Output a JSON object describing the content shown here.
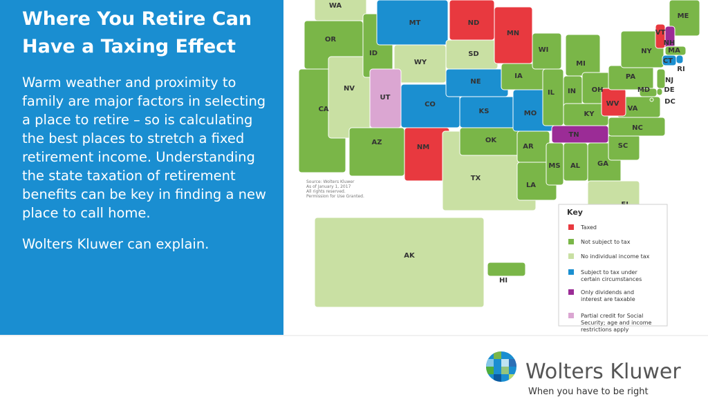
{
  "header": {
    "title": "Where You Retire Can Have a Taxing Effect",
    "paragraphs": [
      "Warm weather and proximity to family are major factors in selecting a place to retire – so is calculating the best places to stretch a fixed retirement income. Understanding the state taxation of retirement benefits can be key in finding a new place to call home.",
      "Wolters Kluwer can explain."
    ]
  },
  "map": {
    "source": [
      "Source: Wolters Kluwer",
      "As of January 1, 2017",
      "All rights reserved.",
      "Permission for Use Granted."
    ],
    "key": {
      "title": "Key",
      "items": [
        {
          "label": [
            "Taxed"
          ],
          "color": "#e8393f"
        },
        {
          "label": [
            "Not subject to tax"
          ],
          "color": "#7ab648"
        },
        {
          "label": [
            "No individual income tax"
          ],
          "color": "#c9e0a3"
        },
        {
          "label": [
            "Subject to tax under",
            "certain circumstances"
          ],
          "color": "#1b8fd0"
        },
        {
          "label": [
            "Only dividends and",
            "interest are taxable"
          ],
          "color": "#9b2c96"
        },
        {
          "label": [
            "Partial credit for Social",
            "Security; age and income",
            "restrictions apply"
          ],
          "color": "#dba6d2"
        }
      ]
    },
    "states": [
      {
        "abbr": "WA",
        "key": 2
      },
      {
        "abbr": "OR",
        "key": 1
      },
      {
        "abbr": "CA",
        "key": 1
      },
      {
        "abbr": "NV",
        "key": 2
      },
      {
        "abbr": "ID",
        "key": 1
      },
      {
        "abbr": "MT",
        "key": 3
      },
      {
        "abbr": "WY",
        "key": 2
      },
      {
        "abbr": "UT",
        "key": 5
      },
      {
        "abbr": "CO",
        "key": 3
      },
      {
        "abbr": "AZ",
        "key": 1
      },
      {
        "abbr": "NM",
        "key": 0
      },
      {
        "abbr": "TX",
        "key": 2
      },
      {
        "abbr": "ND",
        "key": 0
      },
      {
        "abbr": "SD",
        "key": 2
      },
      {
        "abbr": "NE",
        "key": 3
      },
      {
        "abbr": "KS",
        "key": 3
      },
      {
        "abbr": "OK",
        "key": 1
      },
      {
        "abbr": "MN",
        "key": 0
      },
      {
        "abbr": "IA",
        "key": 1
      },
      {
        "abbr": "MO",
        "key": 3
      },
      {
        "abbr": "AR",
        "key": 1
      },
      {
        "abbr": "LA",
        "key": 1
      },
      {
        "abbr": "WI",
        "key": 1
      },
      {
        "abbr": "IL",
        "key": 1
      },
      {
        "abbr": "MI",
        "key": 1
      },
      {
        "abbr": "IN",
        "key": 1
      },
      {
        "abbr": "OH",
        "key": 1
      },
      {
        "abbr": "KY",
        "key": 1
      },
      {
        "abbr": "TN",
        "key": 4
      },
      {
        "abbr": "MS",
        "key": 1
      },
      {
        "abbr": "AL",
        "key": 1
      },
      {
        "abbr": "GA",
        "key": 1
      },
      {
        "abbr": "FL",
        "key": 2
      },
      {
        "abbr": "SC",
        "key": 1
      },
      {
        "abbr": "NC",
        "key": 1
      },
      {
        "abbr": "VA",
        "key": 1
      },
      {
        "abbr": "WV",
        "key": 0
      },
      {
        "abbr": "PA",
        "key": 1
      },
      {
        "abbr": "NY",
        "key": 1
      },
      {
        "abbr": "ME",
        "key": 1
      },
      {
        "abbr": "VT",
        "key": 0
      },
      {
        "abbr": "NH",
        "key": 4
      },
      {
        "abbr": "MA",
        "key": 1
      },
      {
        "abbr": "CT",
        "key": 3
      },
      {
        "abbr": "RI",
        "key": 3
      },
      {
        "abbr": "NJ",
        "key": 1
      },
      {
        "abbr": "DE",
        "key": 1
      },
      {
        "abbr": "MD",
        "key": 1
      },
      {
        "abbr": "DC",
        "key": 1
      },
      {
        "abbr": "AK",
        "key": 2
      },
      {
        "abbr": "HI",
        "key": 1
      }
    ]
  },
  "logo": {
    "name": "Wolters Kluwer",
    "tagline": "When you have to be right"
  }
}
